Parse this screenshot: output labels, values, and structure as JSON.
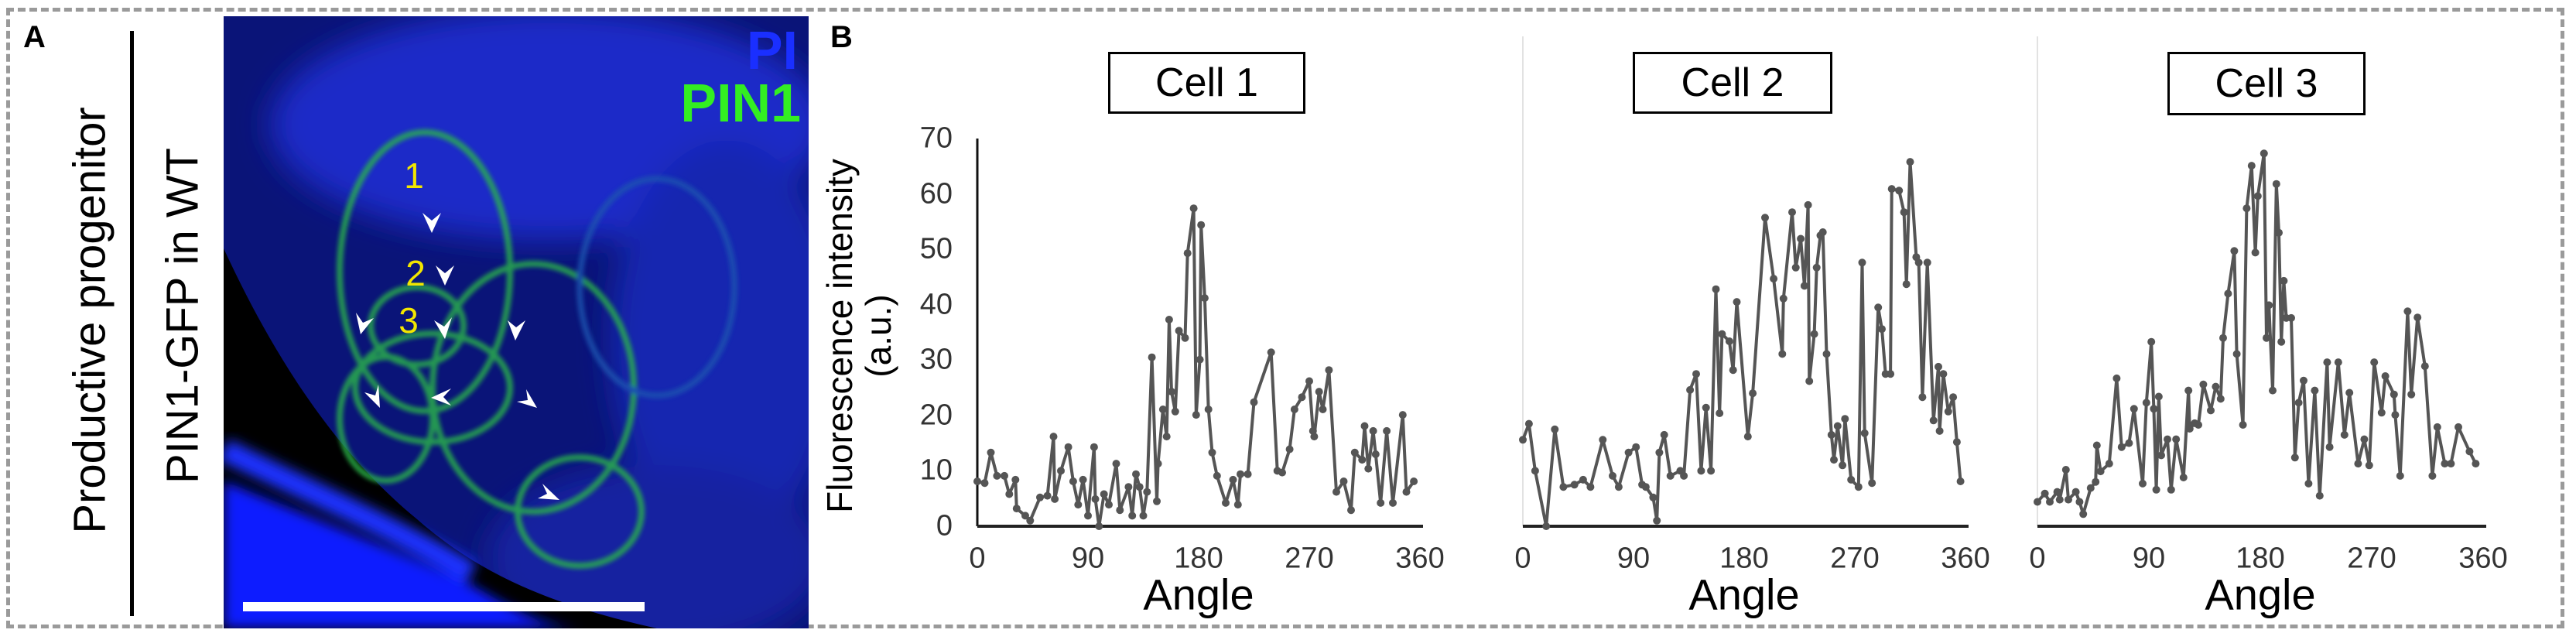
{
  "panel_a": {
    "letter": "A",
    "row_label": "Productive progenitor",
    "construct_label": "PIN1-GFP in WT",
    "channels": [
      {
        "name": "PI",
        "color": "#1a2fff"
      },
      {
        "name": "PIN1",
        "color": "#33ee22"
      }
    ],
    "cell_numbers": [
      "1",
      "2",
      "3"
    ],
    "cell_number_color": "#f2e600",
    "scale_bar": true
  },
  "panel_b": {
    "letter": "B"
  },
  "chart_data": [
    {
      "type": "line",
      "title": "Cell 1",
      "xlabel": "Angle",
      "ylabel": "Fluorescence intensity (a.u.)",
      "xlim": [
        0,
        360
      ],
      "ylim": [
        0,
        70
      ],
      "xticks": [
        "0",
        "90",
        "180",
        "270",
        "360"
      ],
      "yticks": [
        "0",
        "10",
        "20",
        "30",
        "40",
        "50",
        "60",
        "70"
      ],
      "markers": true,
      "grid": false,
      "line_color": "#555555",
      "x": [
        0,
        6,
        11,
        16,
        22,
        26,
        31,
        32,
        39,
        43,
        51,
        57,
        62,
        63,
        68,
        74,
        78,
        82,
        86,
        90,
        95,
        96,
        99,
        103,
        107,
        113,
        116,
        123,
        126,
        129,
        132,
        135,
        138,
        142,
        146,
        147,
        151,
        154,
        156,
        158,
        161,
        164,
        169,
        171,
        176,
        178,
        181,
        182,
        185,
        188,
        191,
        195,
        202,
        208,
        212,
        214,
        220,
        225,
        239,
        244,
        248,
        254,
        258,
        264,
        270,
        273,
        274,
        278,
        281,
        286,
        292,
        298,
        304,
        307,
        313,
        315,
        318,
        322,
        324,
        328,
        333,
        338,
        346,
        349,
        355
      ],
      "y": [
        8.1,
        7.8,
        13.3,
        9.1,
        9.1,
        5.8,
        8.4,
        3.2,
        1.9,
        1,
        5.2,
        5.5,
        16.2,
        4.9,
        10,
        14.3,
        8.1,
        3.9,
        8.4,
        1.9,
        14.3,
        4.9,
        0,
        5.8,
        3.9,
        11.3,
        2.9,
        7.1,
        1.9,
        9.4,
        7.1,
        1.9,
        6.2,
        30.5,
        4.5,
        11.3,
        21.1,
        16.2,
        37.3,
        24.3,
        20.7,
        35.3,
        34,
        49.3,
        57.4,
        20.1,
        30.1,
        54.4,
        41.2,
        21.1,
        13.3,
        9.1,
        4.2,
        8.4,
        3.9,
        9.4,
        9.4,
        22.4,
        31.4,
        10,
        9.7,
        13.9,
        21.1,
        23.3,
        26.2,
        17.2,
        16.2,
        24.3,
        21.1,
        28.2,
        6.2,
        8.1,
        2.9,
        13.3,
        12,
        18.1,
        10.4,
        17.2,
        13,
        4.2,
        17.2,
        4.2,
        20.1,
        6.2,
        8.1
      ]
    },
    {
      "type": "line",
      "title": "Cell 2",
      "xlabel": "Angle",
      "xlim": [
        0,
        360
      ],
      "ylim": [
        0,
        70
      ],
      "xticks": [
        "0",
        "90",
        "180",
        "270",
        "360"
      ],
      "markers": true,
      "grid": false,
      "line_color": "#555555",
      "x": [
        0,
        5,
        10,
        19,
        26,
        33,
        42,
        49,
        55,
        65,
        73,
        78,
        86,
        92,
        97,
        100,
        106,
        109,
        111,
        115,
        120,
        128,
        131,
        136,
        141,
        145,
        149,
        153,
        157,
        160,
        162,
        168,
        171,
        174,
        183,
        187,
        197,
        204,
        211,
        212,
        219,
        222,
        226,
        229,
        232,
        233,
        237,
        239,
        242,
        244,
        247,
        251,
        253,
        256,
        260,
        262,
        267,
        273,
        276,
        278,
        284,
        289,
        292,
        295,
        299,
        300,
        306,
        310,
        312,
        315,
        320,
        322,
        325,
        329,
        334,
        338,
        339,
        342,
        346,
        350,
        353,
        356
      ],
      "y": [
        15.6,
        18.5,
        10,
        0,
        17.5,
        7.1,
        7.5,
        8.4,
        7.1,
        15.6,
        9.1,
        7.1,
        13.3,
        14.3,
        7.5,
        7.1,
        5.2,
        1,
        13.3,
        16.5,
        9.1,
        10,
        9.1,
        24.6,
        27.5,
        10,
        21.4,
        10,
        42.8,
        20.4,
        34.7,
        33.4,
        28.2,
        40.5,
        16.2,
        24,
        55.7,
        44.7,
        31.1,
        41.1,
        56.7,
        46.7,
        51.9,
        43.4,
        58,
        26.2,
        34.7,
        46.7,
        52.5,
        53.1,
        31.1,
        16.5,
        12,
        18.1,
        11,
        19.4,
        8.4,
        7.1,
        47.6,
        16.8,
        7.8,
        39.5,
        35.6,
        27.5,
        27.5,
        60.9,
        60.6,
        56.7,
        43.7,
        65.8,
        48.6,
        47.6,
        23.3,
        47.6,
        19.1,
        28.8,
        17.2,
        27.5,
        20.7,
        23.3,
        15.2,
        8.1
      ]
    },
    {
      "type": "line",
      "title": "Cell 3",
      "xlabel": "Angle",
      "xlim": [
        0,
        360
      ],
      "ylim": [
        0,
        70
      ],
      "xticks": [
        "0",
        "90",
        "180",
        "270",
        "360"
      ],
      "markers": true,
      "grid": false,
      "line_color": "#555555",
      "x": [
        0,
        6,
        10,
        16,
        18,
        23,
        25,
        31,
        34,
        37,
        43,
        47,
        48,
        51,
        58,
        64,
        68,
        74,
        78,
        85,
        88,
        92,
        94,
        96,
        98,
        100,
        105,
        108,
        112,
        118,
        122,
        123,
        127,
        130,
        134,
        140,
        144,
        148,
        150,
        154,
        159,
        161,
        166,
        169,
        173,
        176,
        178,
        183,
        185,
        187,
        190,
        193,
        195,
        197,
        199,
        201,
        205,
        208,
        211,
        215,
        219,
        224,
        228,
        234,
        236,
        243,
        248,
        252,
        259,
        264,
        268,
        272,
        278,
        281,
        288,
        289,
        293,
        299,
        302,
        307,
        313,
        319,
        323,
        329,
        334,
        340,
        349,
        354
      ],
      "y": [
        4.4,
        5.9,
        4.4,
        6.2,
        4.8,
        10.2,
        4.8,
        6.2,
        4.4,
        2.2,
        6.9,
        8,
        14.6,
        9.9,
        11.3,
        26.7,
        14.3,
        15,
        21.2,
        7.7,
        22.3,
        33.3,
        21.2,
        6.6,
        23.4,
        12.8,
        15.7,
        6.6,
        15.7,
        8.8,
        24.5,
        17.6,
        18.6,
        18.3,
        25.6,
        20.9,
        25.2,
        23,
        34,
        42,
        49.7,
        31.1,
        18.3,
        57.4,
        65.1,
        49.4,
        59.6,
        67.3,
        34,
        39.9,
        24.5,
        61.8,
        53,
        33.3,
        44.3,
        37.6,
        37.6,
        12.4,
        22.3,
        26.3,
        7.7,
        24.5,
        5.5,
        29.6,
        14.3,
        29.6,
        16.5,
        24.1,
        11.3,
        15.7,
        11,
        29.6,
        20.5,
        27.1,
        23.8,
        20.1,
        9.1,
        38.8,
        23.8,
        37.7,
        28.9,
        9.1,
        17.9,
        11.3,
        11.3,
        17.9,
        13.5,
        11.3
      ]
    }
  ]
}
